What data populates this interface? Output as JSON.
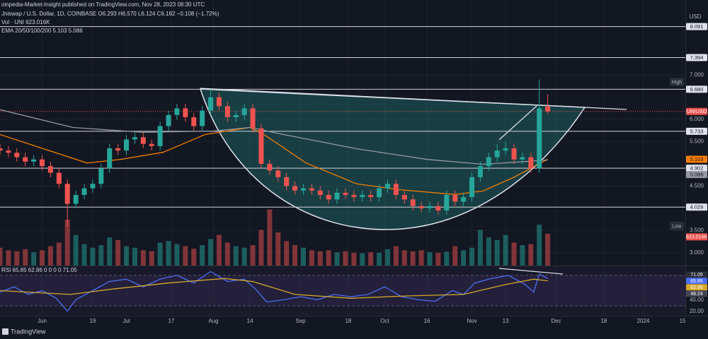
{
  "chart_data": [
    {
      "type": "candlestick",
      "title": "oinpedia-Market-Insight published on TradingView.com, Nov 28, 2023 08:30 UTC",
      "subtitle": "Jniswap / U.S. Dollar, 1D, COINBASE  O6.293 H6.570 L6.124 C6.182 −0.108 (−1.72%)",
      "volume_legend": "Vol · UNI 623.016K",
      "ema_legend": "EMA 20/50/100/200 5.103 5.086",
      "currency": "USD",
      "high_label": "High",
      "low_label": "Low",
      "symbol_label": "UNIUSD",
      "brand": "TradingView",
      "up_color": "#26a69a",
      "down_color": "#ef5350",
      "x": [
        "2023-05-17",
        "2023-05-20",
        "2023-05-23",
        "2023-05-26",
        "2023-05-29",
        "2023-06-01",
        "2023-06-04",
        "2023-06-07",
        "2023-06-10",
        "2023-06-13",
        "2023-06-16",
        "2023-06-19",
        "2023-06-22",
        "2023-06-25",
        "2023-06-28",
        "2023-07-01",
        "2023-07-04",
        "2023-07-07",
        "2023-07-10",
        "2023-07-13",
        "2023-07-16",
        "2023-07-19",
        "2023-07-22",
        "2023-07-25",
        "2023-07-28",
        "2023-07-31",
        "2023-08-03",
        "2023-08-06",
        "2023-08-09",
        "2023-08-12",
        "2023-08-15",
        "2023-08-18",
        "2023-08-21",
        "2023-08-24",
        "2023-08-27",
        "2023-08-30",
        "2023-09-02",
        "2023-09-05",
        "2023-09-08",
        "2023-09-11",
        "2023-09-14",
        "2023-09-17",
        "2023-09-20",
        "2023-09-23",
        "2023-09-26",
        "2023-09-29",
        "2023-10-02",
        "2023-10-05",
        "2023-10-08",
        "2023-10-11",
        "2023-10-14",
        "2023-10-17",
        "2023-10-20",
        "2023-10-23",
        "2023-10-26",
        "2023-10-29",
        "2023-11-01",
        "2023-11-04",
        "2023-11-07",
        "2023-11-10",
        "2023-11-13",
        "2023-11-16",
        "2023-11-19",
        "2023-11-22",
        "2023-11-25",
        "2023-11-28"
      ],
      "open": [
        5.35,
        5.3,
        5.25,
        5.15,
        5.05,
        5.1,
        4.95,
        4.8,
        4.55,
        4.1,
        4.3,
        4.45,
        4.55,
        4.9,
        5.35,
        5.3,
        5.55,
        5.6,
        5.45,
        5.4,
        5.85,
        6.1,
        6.25,
        6.05,
        5.85,
        6.2,
        6.5,
        6.3,
        6.05,
        6.1,
        6.25,
        5.8,
        5.0,
        4.85,
        4.7,
        4.5,
        4.4,
        4.45,
        4.4,
        4.3,
        4.2,
        4.35,
        4.3,
        4.25,
        4.3,
        4.25,
        4.45,
        4.55,
        4.3,
        4.2,
        4.05,
        4.0,
        4.05,
        3.95,
        4.3,
        4.15,
        4.25,
        4.7,
        4.95,
        5.15,
        5.3,
        5.35,
        5.1,
        5.15,
        4.9,
        6.293
      ],
      "high": [
        5.45,
        5.4,
        5.35,
        5.25,
        5.2,
        5.2,
        5.05,
        4.9,
        4.65,
        4.4,
        4.55,
        4.65,
        5.0,
        5.45,
        5.45,
        5.65,
        5.7,
        5.7,
        5.55,
        5.95,
        6.2,
        6.35,
        6.35,
        6.15,
        6.3,
        6.68,
        6.6,
        6.4,
        6.2,
        6.35,
        6.35,
        5.9,
        5.1,
        4.95,
        4.8,
        4.6,
        4.55,
        4.55,
        4.5,
        4.4,
        4.45,
        4.45,
        4.4,
        4.4,
        4.4,
        4.55,
        4.65,
        4.65,
        4.4,
        4.3,
        4.15,
        4.15,
        4.15,
        4.4,
        4.4,
        4.35,
        4.8,
        5.05,
        5.25,
        5.45,
        5.5,
        5.45,
        5.25,
        5.25,
        6.9,
        6.57
      ],
      "low": [
        5.2,
        5.15,
        5.05,
        4.95,
        4.95,
        4.85,
        4.7,
        4.45,
        3.59,
        4.0,
        4.2,
        4.35,
        4.45,
        4.8,
        5.2,
        5.2,
        5.45,
        5.35,
        5.3,
        5.3,
        5.75,
        6.0,
        5.95,
        5.75,
        5.75,
        6.1,
        6.2,
        5.95,
        5.95,
        6.0,
        5.7,
        4.9,
        4.75,
        4.6,
        4.4,
        4.3,
        4.3,
        4.3,
        4.2,
        4.1,
        4.1,
        4.2,
        4.15,
        4.15,
        4.15,
        4.15,
        4.35,
        4.2,
        4.1,
        3.95,
        3.9,
        3.9,
        3.85,
        3.85,
        4.05,
        4.05,
        4.15,
        4.6,
        4.85,
        5.05,
        5.2,
        5.0,
        5.0,
        4.8,
        4.8,
        6.124
      ],
      "close": [
        5.3,
        5.25,
        5.15,
        5.05,
        5.1,
        4.95,
        4.8,
        4.55,
        4.1,
        4.3,
        4.45,
        4.55,
        4.9,
        5.35,
        5.3,
        5.55,
        5.6,
        5.45,
        5.4,
        5.85,
        6.1,
        6.25,
        6.05,
        5.85,
        6.2,
        6.5,
        6.3,
        6.05,
        6.1,
        6.25,
        5.8,
        5.0,
        4.85,
        4.7,
        4.5,
        4.4,
        4.45,
        4.4,
        4.3,
        4.2,
        4.35,
        4.3,
        4.25,
        4.3,
        4.25,
        4.45,
        4.55,
        4.3,
        4.2,
        4.05,
        4.0,
        4.05,
        3.95,
        4.3,
        4.15,
        4.25,
        4.7,
        4.95,
        5.15,
        5.3,
        5.35,
        5.1,
        5.15,
        4.9,
        6.25,
        6.182
      ],
      "volume": [
        350000,
        300000,
        280000,
        320000,
        260000,
        300000,
        380000,
        450000,
        900000,
        600000,
        420000,
        350000,
        400000,
        550000,
        500000,
        380000,
        350000,
        300000,
        280000,
        450000,
        480000,
        420000,
        380000,
        330000,
        400000,
        520000,
        600000,
        450000,
        380000,
        350000,
        400000,
        700000,
        1100000,
        650000,
        480000,
        400000,
        350000,
        300000,
        280000,
        300000,
        260000,
        280000,
        250000,
        240000,
        260000,
        250000,
        320000,
        380000,
        300000,
        280000,
        300000,
        260000,
        250000,
        270000,
        380000,
        300000,
        350000,
        700000,
        550000,
        500000,
        600000,
        450000,
        400000,
        420000,
        800000,
        623016
      ],
      "volume_last_label": "623.016K",
      "volume_lim": [
        0,
        1800000
      ],
      "series": [
        {
          "color": "#f57c00",
          "x": [
            "2023-05-17",
            "2023-06-17",
            "2023-06-29",
            "2023-07-14",
            "2023-07-29",
            "2023-08-06",
            "2023-08-14",
            "2023-08-19",
            "2023-09-03",
            "2023-09-21",
            "2023-10-06",
            "2023-10-26",
            "2023-11-05",
            "2023-11-16",
            "2023-11-28"
          ],
          "values": [
            5.66,
            5.02,
            5.1,
            5.26,
            5.66,
            5.74,
            5.82,
            5.66,
            5.02,
            4.55,
            4.42,
            4.31,
            4.39,
            4.7,
            5.103
          ]
        },
        {
          "color": "#9598a1",
          "x": [
            "2023-05-17",
            "2023-06-12",
            "2023-07-07",
            "2023-08-01",
            "2023-08-14",
            "2023-08-26",
            "2023-09-21",
            "2023-10-16",
            "2023-11-05",
            "2023-11-28"
          ],
          "values": [
            6.22,
            5.82,
            5.71,
            5.74,
            5.82,
            5.66,
            5.34,
            5.1,
            4.99,
            5.086
          ]
        }
      ],
      "badges": [
        5.103,
        5.086
      ],
      "badge_colors": [
        "#f57c00",
        "#9598a1"
      ],
      "levels": [
        8.091,
        7.394,
        {
          "value": 6.68,
          "label": "6.680"
        },
        5.733,
        4.902,
        4.026
      ],
      "xlim": [
        "2023-05-17",
        "2024-01-16"
      ],
      "xticks": [
        {
          "value": "2023-06-01",
          "label": "Jun"
        },
        {
          "value": "2023-06-19",
          "label": "19"
        },
        {
          "value": "2023-07-01",
          "label": "Jul"
        },
        {
          "value": "2023-07-17",
          "label": "17"
        },
        {
          "value": "2023-08-01",
          "label": "Aug"
        },
        {
          "value": "2023-08-14",
          "label": "14"
        },
        {
          "value": "2023-09-01",
          "label": "Sep"
        },
        {
          "value": "2023-09-18",
          "label": "18"
        },
        {
          "value": "2023-10-01",
          "label": "Oct"
        },
        {
          "value": "2023-10-16",
          "label": "16"
        },
        {
          "value": "2023-11-01",
          "label": "Nov"
        },
        {
          "value": "2023-11-13",
          "label": "13"
        },
        {
          "value": "2023-12-01",
          "label": "Dec"
        },
        {
          "value": "2023-12-18",
          "label": "18"
        },
        {
          "value": "2024-01-01",
          "label": "2024"
        },
        {
          "value": "2024-01-15",
          "label": "15"
        }
      ],
      "ylim": [
        2.71,
        8.69
      ],
      "yticks": [
        {
          "value": 3,
          "label": "3.000"
        },
        {
          "value": 3.5,
          "label": "3.500"
        },
        {
          "value": 4.5,
          "label": "4.500"
        },
        {
          "value": 5.5,
          "label": "5.500"
        },
        {
          "value": 6,
          "label": "6.000"
        },
        {
          "value": 7,
          "label": "7.000"
        }
      ],
      "grid": true
    },
    {
      "type": "line",
      "legend": "RSI 65.85 62.86 0 0 0 0 71.05",
      "series": [
        {
          "color": "#4c6ef5",
          "x": [
            "2023-05-17",
            "2023-05-22",
            "2023-05-27",
            "2023-06-01",
            "2023-06-06",
            "2023-06-10",
            "2023-06-13",
            "2023-06-19",
            "2023-06-25",
            "2023-07-01",
            "2023-07-07",
            "2023-07-13",
            "2023-07-19",
            "2023-07-25",
            "2023-07-31",
            "2023-08-06",
            "2023-08-12",
            "2023-08-16",
            "2023-08-20",
            "2023-08-26",
            "2023-09-01",
            "2023-09-07",
            "2023-09-13",
            "2023-09-19",
            "2023-09-25",
            "2023-10-01",
            "2023-10-07",
            "2023-10-13",
            "2023-10-19",
            "2023-10-25",
            "2023-10-29",
            "2023-11-02",
            "2023-11-08",
            "2023-11-14",
            "2023-11-20",
            "2023-11-23",
            "2023-11-25",
            "2023-11-28"
          ],
          "values": [
            48,
            55,
            45,
            50,
            40,
            23,
            38,
            50,
            62,
            65,
            55,
            65,
            70,
            60,
            75,
            62,
            65,
            52,
            35,
            38,
            42,
            38,
            45,
            42,
            45,
            55,
            42,
            38,
            36,
            50,
            45,
            60,
            66,
            70,
            58,
            48,
            72,
            65.85
          ]
        },
        {
          "color": "#d4a82a",
          "x": [
            "2023-05-17",
            "2023-06-11",
            "2023-06-26",
            "2023-07-16",
            "2023-08-05",
            "2023-08-15",
            "2023-08-30",
            "2023-09-19",
            "2023-10-09",
            "2023-10-29",
            "2023-11-13",
            "2023-11-23",
            "2023-11-28"
          ],
          "values": [
            50,
            45,
            52,
            60,
            66,
            62,
            45,
            40,
            43,
            45,
            58,
            65,
            62.86
          ]
        }
      ],
      "band": [
        30,
        70
      ],
      "badges": [
        71.05,
        65.85,
        62.86,
        48.24
      ],
      "badge_colors": [
        "#2a2e39",
        "#4c6ef5",
        "#d4a82a",
        "#434651"
      ],
      "ylim": [
        18,
        82
      ],
      "yticks": [
        {
          "value": 40,
          "label": "40.00"
        },
        {
          "value": 20,
          "label": "20.00"
        }
      ]
    }
  ]
}
